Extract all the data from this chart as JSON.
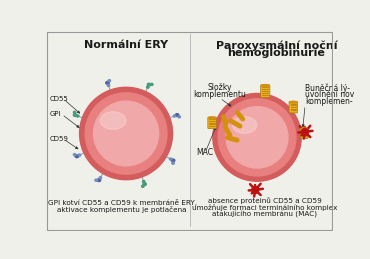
{
  "bg_color": "#f0f0eb",
  "border_color": "#999999",
  "title_left": "Normální ERY",
  "title_right_line1": "Paroxysmální noční",
  "title_right_line2": "hemoglobinurie",
  "label_complement_line1": "Složky",
  "label_complement_line2": "komplementu",
  "label_cell_lysis_line1": "Buněčná lý-",
  "label_cell_lysis_line2": "uvolnění nov",
  "label_cell_lysis_line3": "komplemen-",
  "label_MAC": "MAC",
  "label_GPI": "GPI",
  "label_CD55": "CD55",
  "label_CD59": "CD59",
  "caption_left_line1": "GPI kotví CD55 a CD59 k membráně ERY,",
  "caption_left_line2": "aktivace komplementu je potlačena",
  "caption_right_line1": "absence proteinů CD55 a CD59",
  "caption_right_line2": "umožňuje formaci terminálního komplex",
  "caption_right_line3": "atakujícího membránu (MAC)",
  "cell_color_dark": "#d45c5c",
  "cell_color_mid": "#e88080",
  "cell_color_light": "#f0a8a8",
  "cell_color_highlight": "#f8d0d0",
  "protein_blue_dark": "#5060a0",
  "protein_blue_light": "#7090c0",
  "protein_teal": "#4a9a80",
  "complement_gold": "#d4920a",
  "mac_gold_dark": "#b07808",
  "mac_gold_light": "#e8b020",
  "lysis_red": "#bb1111",
  "stem_color": "#888888",
  "text_color": "#1a1a1a",
  "arrow_color": "#333333",
  "divider_color": "#bbbbbb",
  "title_fontsize": 7.5,
  "caption_fontsize": 5.2,
  "label_fontsize": 5.5,
  "small_label_fontsize": 5.0
}
